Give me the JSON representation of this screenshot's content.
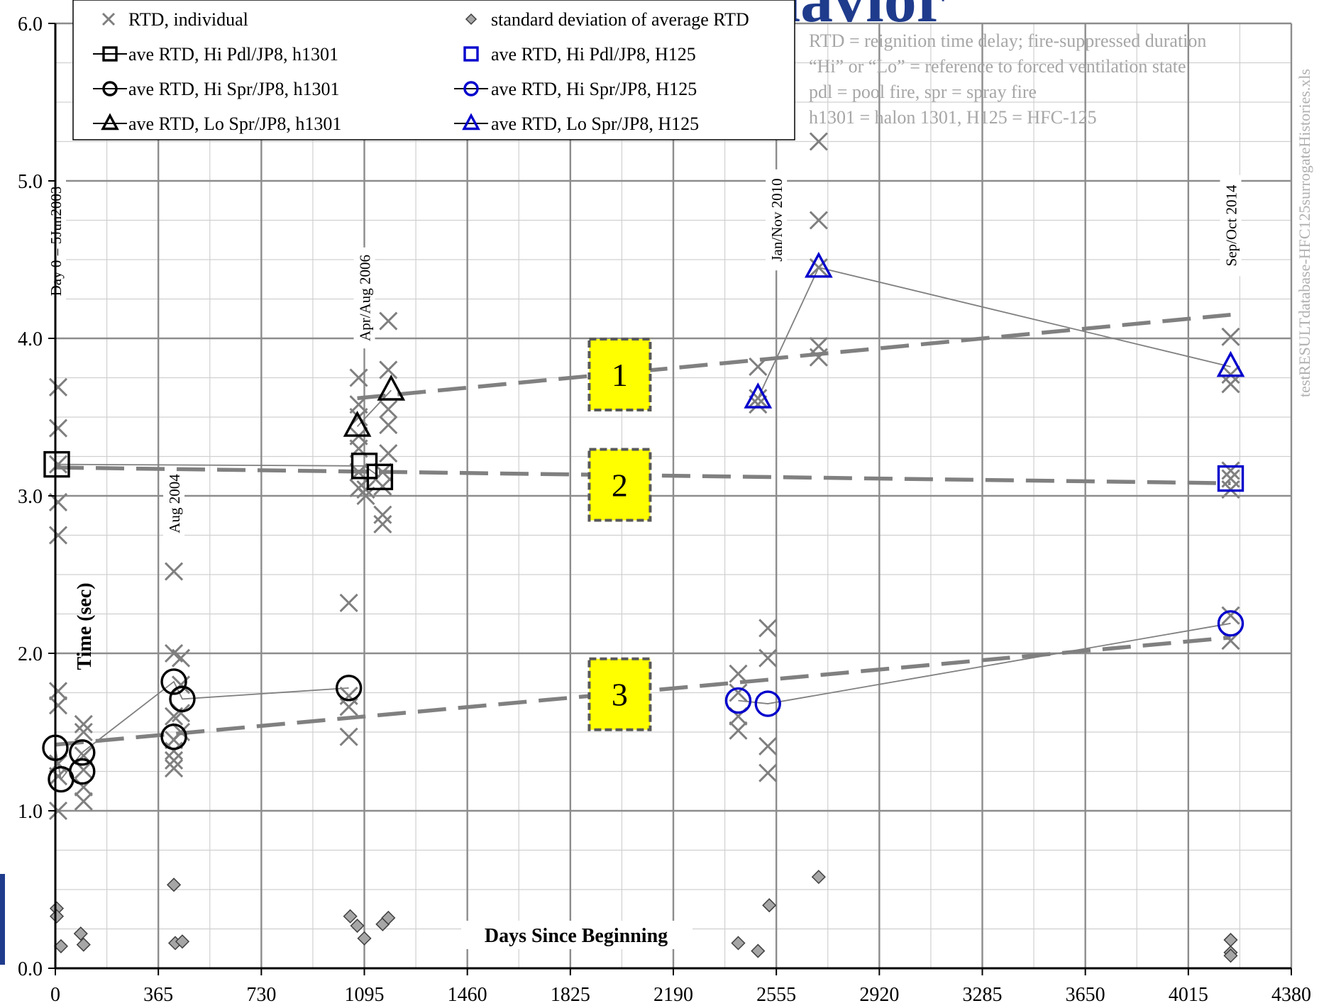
{
  "banner": {
    "title": "FAA FC test article behavior"
  },
  "colors": {
    "gray_marker": "#7f7f7f",
    "blue": "#0000cc",
    "black": "#000000",
    "trend": "#808080",
    "box_fill": "#ffff00",
    "banner": "#1f3b8c"
  },
  "notes": [
    "RTD = reignition time delay; fire-suppressed duration",
    "“Hi” or “Lo” = reference to forced ventilation state",
    "pdl = pool fire, spr = spray fire",
    "h1301 = halon 1301, H125 = HFC-125"
  ],
  "side_file": "testRESULTdatabase-HFC125surrogateHistories.xls",
  "chart_data": {
    "type": "scatter",
    "xlabel": "Days Since Beginning",
    "ylabel": "Time (sec)",
    "xlim": [
      0,
      4380
    ],
    "ylim": [
      0,
      6
    ],
    "x_ticks": [
      0,
      365,
      730,
      1095,
      1460,
      1825,
      2190,
      2555,
      2920,
      3285,
      3650,
      4015,
      4380
    ],
    "x_minor_step": 182.5,
    "y_ticks": [
      0,
      1,
      2,
      3,
      4,
      5,
      6
    ],
    "y_tick_labels": [
      "0.0",
      "1.0",
      "2.0",
      "3.0",
      "4.0",
      "5.0",
      "6.0"
    ],
    "y_minor_step": 0.25,
    "grid": true,
    "legend_position": "top-left",
    "legend": [
      "RTD, individual",
      "standard deviation of average RTD",
      "ave RTD, Hi Pdl/JP8, h1301",
      "ave RTD, Hi Pdl/JP8, H125",
      "ave RTD, Hi Spr/JP8, h1301",
      "ave RTD, Hi Spr/JP8, H125",
      "ave RTD, Lo Spr/JP8, h1301",
      "ave RTD, Lo Spr/JP8, H125"
    ],
    "date_annotations": [
      {
        "x": 0,
        "text": "Day 0 = 5Jun2003"
      },
      {
        "x": 420,
        "text": "Aug 2004"
      },
      {
        "x": 1095,
        "text": "Apr/Aug 2006"
      },
      {
        "x": 2555,
        "text": "Jan/Nov 2010"
      },
      {
        "x": 4165,
        "text": "Sep/Oct 2014"
      }
    ],
    "trend_boxes": [
      {
        "label": "1",
        "x": 2000,
        "y": 3.77
      },
      {
        "label": "2",
        "x": 2000,
        "y": 3.07
      },
      {
        "label": "3",
        "x": 2000,
        "y": 1.74
      }
    ],
    "trend_lines": [
      {
        "label": "1",
        "x": [
          1070,
          4165
        ],
        "y": [
          3.62,
          4.15
        ]
      },
      {
        "label": "2",
        "x": [
          0,
          4165
        ],
        "y": [
          3.18,
          3.08
        ]
      },
      {
        "label": "3",
        "x": [
          0,
          4165
        ],
        "y": [
          1.42,
          2.1
        ]
      }
    ],
    "series": [
      {
        "name": "RTD, individual",
        "marker": "x",
        "points": [
          [
            10,
            3.69
          ],
          [
            10,
            3.43
          ],
          [
            10,
            3.2
          ],
          [
            10,
            2.96
          ],
          [
            10,
            2.75
          ],
          [
            10,
            1.76
          ],
          [
            10,
            1.67
          ],
          [
            10,
            1.3
          ],
          [
            10,
            1.22
          ],
          [
            10,
            1.0
          ],
          [
            100,
            1.55
          ],
          [
            100,
            1.5
          ],
          [
            100,
            1.35
          ],
          [
            100,
            1.26
          ],
          [
            100,
            1.15
          ],
          [
            100,
            1.06
          ],
          [
            420,
            2.52
          ],
          [
            420,
            2.0
          ],
          [
            420,
            1.6
          ],
          [
            420,
            1.45
          ],
          [
            420,
            1.38
          ],
          [
            420,
            1.32
          ],
          [
            420,
            1.27
          ],
          [
            445,
            1.97
          ],
          [
            445,
            1.8
          ],
          [
            445,
            1.62
          ],
          [
            445,
            1.5
          ],
          [
            1040,
            2.32
          ],
          [
            1040,
            1.73
          ],
          [
            1040,
            1.66
          ],
          [
            1040,
            1.47
          ],
          [
            1075,
            3.75
          ],
          [
            1075,
            3.58
          ],
          [
            1075,
            3.5
          ],
          [
            1075,
            3.38
          ],
          [
            1075,
            3.3
          ],
          [
            1075,
            3.15
          ],
          [
            1075,
            3.05
          ],
          [
            1100,
            3.0
          ],
          [
            1100,
            3.04
          ],
          [
            1160,
            3.15
          ],
          [
            1160,
            3.06
          ],
          [
            1160,
            2.88
          ],
          [
            1160,
            2.82
          ],
          [
            1180,
            4.11
          ],
          [
            1180,
            3.8
          ],
          [
            1180,
            3.55
          ],
          [
            1180,
            3.45
          ],
          [
            1180,
            3.27
          ],
          [
            2420,
            1.87
          ],
          [
            2420,
            1.75
          ],
          [
            2420,
            1.6
          ],
          [
            2420,
            1.51
          ],
          [
            2490,
            3.82
          ],
          [
            2490,
            3.62
          ],
          [
            2490,
            3.58
          ],
          [
            2525,
            2.16
          ],
          [
            2525,
            1.97
          ],
          [
            2525,
            1.41
          ],
          [
            2525,
            1.24
          ],
          [
            2705,
            5.25
          ],
          [
            2705,
            4.75
          ],
          [
            2705,
            4.45
          ],
          [
            2705,
            3.95
          ],
          [
            2705,
            3.88
          ],
          [
            4165,
            4.01
          ],
          [
            4165,
            3.77
          ],
          [
            4165,
            3.71
          ],
          [
            4165,
            3.16
          ],
          [
            4165,
            3.11
          ],
          [
            4165,
            3.04
          ],
          [
            4165,
            2.24
          ],
          [
            4165,
            2.08
          ]
        ]
      },
      {
        "name": "standard deviation of average RTD",
        "marker": "diamond",
        "points": [
          [
            5,
            0.38
          ],
          [
            5,
            0.33
          ],
          [
            20,
            0.14
          ],
          [
            90,
            0.22
          ],
          [
            100,
            0.15
          ],
          [
            420,
            0.53
          ],
          [
            425,
            0.16
          ],
          [
            450,
            0.17
          ],
          [
            1045,
            0.33
          ],
          [
            1070,
            0.27
          ],
          [
            1095,
            0.19
          ],
          [
            1160,
            0.28
          ],
          [
            1180,
            0.32
          ],
          [
            2420,
            0.16
          ],
          [
            2490,
            0.11
          ],
          [
            2530,
            0.4
          ],
          [
            2705,
            0.58
          ],
          [
            4165,
            0.18
          ],
          [
            4165,
            0.1
          ],
          [
            4165,
            0.08
          ]
        ]
      },
      {
        "name": "ave RTD, Hi Pdl/JP8, h1301",
        "marker": "square",
        "color": "#000000",
        "points": [
          [
            5,
            3.2
          ],
          [
            1095,
            3.19
          ],
          [
            1150,
            3.12
          ]
        ]
      },
      {
        "name": "ave RTD, Hi Pdl/JP8, H125",
        "marker": "square",
        "color": "#0000cc",
        "points": [
          [
            4165,
            3.11
          ]
        ]
      },
      {
        "name": "ave RTD, Hi Spr/JP8, h1301",
        "marker": "circle",
        "color": "#000000",
        "points": [
          [
            0,
            1.4
          ],
          [
            20,
            1.2
          ],
          [
            95,
            1.37
          ],
          [
            95,
            1.25
          ],
          [
            420,
            1.82
          ],
          [
            420,
            1.47
          ],
          [
            450,
            1.71
          ],
          [
            1040,
            1.78
          ]
        ]
      },
      {
        "name": "ave RTD, Hi Spr/JP8, H125",
        "marker": "circle",
        "color": "#0000cc",
        "points": [
          [
            2420,
            1.7
          ],
          [
            2525,
            1.68
          ],
          [
            4165,
            2.19
          ]
        ]
      },
      {
        "name": "ave RTD, Lo Spr/JP8, h1301",
        "marker": "triangle",
        "color": "#000000",
        "points": [
          [
            1070,
            3.44
          ],
          [
            1190,
            3.67
          ]
        ]
      },
      {
        "name": "ave RTD, Lo Spr/JP8, H125",
        "marker": "triangle",
        "color": "#0000cc",
        "points": [
          [
            2490,
            3.62
          ],
          [
            2705,
            4.45
          ],
          [
            4165,
            3.82
          ]
        ]
      }
    ],
    "connectors": [
      {
        "of": "ave RTD, Hi Pdl/JP8, h1301",
        "x": [
          5,
          1095,
          1150
        ],
        "y": [
          3.2,
          3.19,
          3.12
        ]
      },
      {
        "of": "ave RTD, Hi Spr/JP8, h1301",
        "x": [
          0,
          20,
          95,
          420,
          450,
          1040
        ],
        "y": [
          1.4,
          1.2,
          1.37,
          1.82,
          1.71,
          1.78
        ]
      },
      {
        "of": "ave RTD, Lo Spr/JP8, h1301",
        "x": [
          1070,
          1190
        ],
        "y": [
          3.44,
          3.67
        ]
      },
      {
        "of": "ave RTD, Hi Spr/JP8, H125",
        "x": [
          2420,
          2525,
          4165
        ],
        "y": [
          1.7,
          1.68,
          2.19
        ]
      },
      {
        "of": "ave RTD, Lo Spr/JP8, H125",
        "x": [
          2490,
          2705,
          4165
        ],
        "y": [
          3.62,
          4.45,
          3.82
        ]
      }
    ]
  }
}
